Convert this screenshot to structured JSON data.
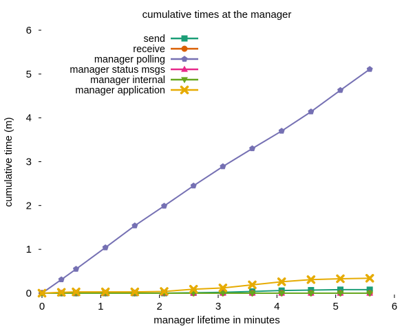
{
  "chart_data": {
    "type": "line",
    "title": "cumulative times at the manager",
    "xlabel": "manager lifetime in minutes",
    "ylabel": "cumulative time (m)",
    "xlim": [
      0,
      6
    ],
    "ylim": [
      0,
      6
    ],
    "xticks": [
      "0",
      "1",
      "2",
      "3",
      "4",
      "5",
      "6"
    ],
    "yticks": [
      "0",
      "1",
      "2",
      "3",
      "4",
      "5",
      "6"
    ],
    "grid": false,
    "legend_position": "top-center",
    "series": [
      {
        "name": "send",
        "color": "#1b9e77",
        "marker": "square",
        "x": [
          0,
          0.33,
          0.58,
          1.08,
          1.58,
          2.08,
          2.58,
          3.08,
          3.58,
          4.08,
          4.58,
          5.08,
          5.58
        ],
        "y": [
          0,
          0,
          0,
          0,
          0,
          0,
          0.01,
          0.02,
          0.04,
          0.06,
          0.07,
          0.08,
          0.08
        ]
      },
      {
        "name": "receive",
        "color": "#d95f02",
        "marker": "circle",
        "x": [
          0,
          0.33,
          0.58,
          1.08,
          1.58,
          2.08,
          2.58,
          3.08,
          3.58,
          4.08,
          4.58,
          5.08,
          5.58
        ],
        "y": [
          0,
          0,
          0,
          0,
          0,
          0,
          0,
          0,
          0,
          0,
          0,
          0,
          0
        ]
      },
      {
        "name": "manager polling",
        "color": "#7570b3",
        "marker": "pentagon",
        "x": [
          0,
          0.33,
          0.58,
          1.08,
          1.58,
          2.08,
          2.58,
          3.08,
          3.58,
          4.08,
          4.58,
          5.08,
          5.58
        ],
        "y": [
          0,
          0.31,
          0.55,
          1.04,
          1.54,
          1.99,
          2.45,
          2.89,
          3.3,
          3.7,
          4.14,
          4.63,
          5.11
        ]
      },
      {
        "name": "manager status msgs",
        "color": "#e7298a",
        "marker": "triangle",
        "x": [
          0,
          0.33,
          0.58,
          1.08,
          1.58,
          2.08,
          2.58,
          3.08,
          3.58,
          4.08,
          4.58,
          5.08,
          5.58
        ],
        "y": [
          0,
          0,
          0,
          0,
          0,
          0,
          0,
          0,
          0,
          0,
          0,
          0,
          0
        ]
      },
      {
        "name": "manager internal",
        "color": "#66a61e",
        "marker": "triangle-down",
        "x": [
          0,
          0.33,
          0.58,
          1.08,
          1.58,
          2.08,
          2.58,
          3.08,
          3.58,
          4.08,
          4.58,
          5.08,
          5.58
        ],
        "y": [
          0,
          0,
          0,
          0,
          0,
          0,
          0,
          0,
          0,
          0,
          0,
          0,
          0
        ]
      },
      {
        "name": "manager application",
        "color": "#e6ab02",
        "marker": "x",
        "x": [
          0,
          0.33,
          0.58,
          1.08,
          1.58,
          2.08,
          2.58,
          3.08,
          3.58,
          4.08,
          4.58,
          5.08,
          5.58
        ],
        "y": [
          0,
          0.02,
          0.03,
          0.03,
          0.03,
          0.04,
          0.09,
          0.12,
          0.19,
          0.26,
          0.31,
          0.33,
          0.34
        ]
      }
    ]
  }
}
